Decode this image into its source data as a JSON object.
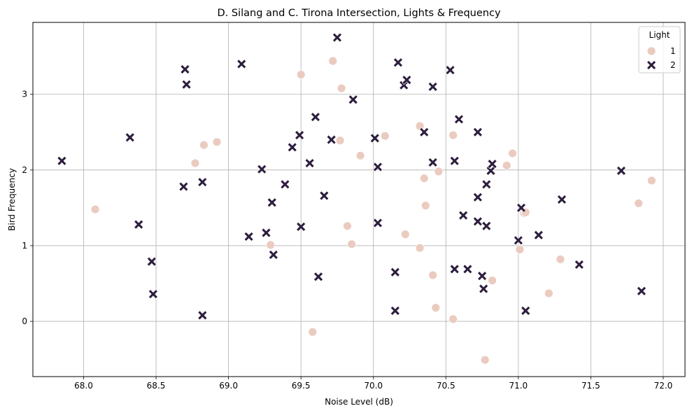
{
  "chart_data": {
    "type": "scatter",
    "title": "D. Silang and C. Tirona Intersection, Lights & Frequency",
    "xlabel": "Noise Level (dB)",
    "ylabel": "Bird Frequency",
    "xlim": [
      67.65,
      72.15
    ],
    "ylim": [
      -0.73,
      3.95
    ],
    "xticks": [
      "68.0",
      "68.5",
      "69.0",
      "69.5",
      "70.0",
      "70.5",
      "71.0",
      "71.5",
      "72.0"
    ],
    "yticks": [
      "0",
      "1",
      "2",
      "3"
    ],
    "grid": true,
    "legend": {
      "title": "Light",
      "position": "top-right"
    },
    "series": [
      {
        "name": "1",
        "marker": "circle",
        "color": "#ebcbc0",
        "points": [
          [
            68.08,
            1.48
          ],
          [
            68.77,
            2.09
          ],
          [
            68.83,
            2.33
          ],
          [
            68.92,
            2.37
          ],
          [
            69.29,
            1.01
          ],
          [
            69.5,
            3.26
          ],
          [
            69.58,
            -0.14
          ],
          [
            69.72,
            3.44
          ],
          [
            69.77,
            2.39
          ],
          [
            69.78,
            3.08
          ],
          [
            69.82,
            1.26
          ],
          [
            69.85,
            1.02
          ],
          [
            69.91,
            2.19
          ],
          [
            70.08,
            2.45
          ],
          [
            70.22,
            1.15
          ],
          [
            70.32,
            2.58
          ],
          [
            70.32,
            0.97
          ],
          [
            70.35,
            1.89
          ],
          [
            70.36,
            1.53
          ],
          [
            70.41,
            0.61
          ],
          [
            70.43,
            0.18
          ],
          [
            70.45,
            1.98
          ],
          [
            70.55,
            2.46
          ],
          [
            70.55,
            0.03
          ],
          [
            70.77,
            -0.51
          ],
          [
            70.82,
            0.54
          ],
          [
            70.92,
            2.06
          ],
          [
            70.96,
            2.22
          ],
          [
            71.01,
            0.95
          ],
          [
            71.04,
            1.43
          ],
          [
            71.05,
            1.44
          ],
          [
            71.21,
            0.37
          ],
          [
            71.29,
            0.82
          ],
          [
            71.83,
            1.56
          ],
          [
            71.92,
            1.86
          ]
        ]
      },
      {
        "name": "2",
        "marker": "x",
        "color": "#2d1e3e",
        "points": [
          [
            67.85,
            2.12
          ],
          [
            68.32,
            2.43
          ],
          [
            68.38,
            1.28
          ],
          [
            68.47,
            0.79
          ],
          [
            68.48,
            0.36
          ],
          [
            68.69,
            1.78
          ],
          [
            68.7,
            3.33
          ],
          [
            68.71,
            3.13
          ],
          [
            68.82,
            1.84
          ],
          [
            68.82,
            0.08
          ],
          [
            69.09,
            3.4
          ],
          [
            69.14,
            1.12
          ],
          [
            69.23,
            2.01
          ],
          [
            69.26,
            1.17
          ],
          [
            69.3,
            1.57
          ],
          [
            69.31,
            0.88
          ],
          [
            69.39,
            1.81
          ],
          [
            69.44,
            2.3
          ],
          [
            69.49,
            2.46
          ],
          [
            69.5,
            1.25
          ],
          [
            69.56,
            2.09
          ],
          [
            69.6,
            2.7
          ],
          [
            69.62,
            0.59
          ],
          [
            69.66,
            1.66
          ],
          [
            69.71,
            2.4
          ],
          [
            69.75,
            3.75
          ],
          [
            69.86,
            2.93
          ],
          [
            70.01,
            2.42
          ],
          [
            70.03,
            2.04
          ],
          [
            70.03,
            1.3
          ],
          [
            70.15,
            0.65
          ],
          [
            70.15,
            0.14
          ],
          [
            70.17,
            3.42
          ],
          [
            70.21,
            3.12
          ],
          [
            70.23,
            3.19
          ],
          [
            70.35,
            2.5
          ],
          [
            70.41,
            3.1
          ],
          [
            70.41,
            2.1
          ],
          [
            70.53,
            3.32
          ],
          [
            70.56,
            2.12
          ],
          [
            70.56,
            0.69
          ],
          [
            70.59,
            2.67
          ],
          [
            70.62,
            1.4
          ],
          [
            70.65,
            0.69
          ],
          [
            70.72,
            2.5
          ],
          [
            70.72,
            1.64
          ],
          [
            70.72,
            1.32
          ],
          [
            70.75,
            0.6
          ],
          [
            70.76,
            0.43
          ],
          [
            70.78,
            1.81
          ],
          [
            70.78,
            1.26
          ],
          [
            70.81,
            1.99
          ],
          [
            70.82,
            2.08
          ],
          [
            71.0,
            1.07
          ],
          [
            71.02,
            1.5
          ],
          [
            71.05,
            0.14
          ],
          [
            71.14,
            1.14
          ],
          [
            71.3,
            1.61
          ],
          [
            71.42,
            0.75
          ],
          [
            71.71,
            1.99
          ],
          [
            71.85,
            0.4
          ]
        ]
      }
    ]
  }
}
